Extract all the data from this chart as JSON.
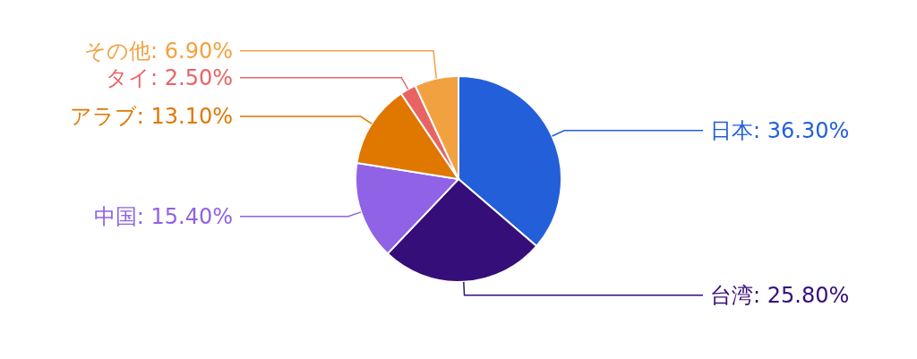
{
  "chart_data": {
    "type": "pie",
    "categories": [
      "日本",
      "台湾",
      "中国",
      "アラブ",
      "タイ",
      "その他"
    ],
    "values": [
      36.3,
      25.8,
      15.4,
      13.1,
      2.5,
      6.9
    ],
    "value_labels": [
      "36.30%",
      "25.80%",
      "15.40%",
      "13.10%",
      "2.50%",
      "6.90%"
    ],
    "colors": [
      "#235fd9",
      "#350e7a",
      "#8f62e6",
      "#e07800",
      "#e86464",
      "#f2a140"
    ]
  }
}
